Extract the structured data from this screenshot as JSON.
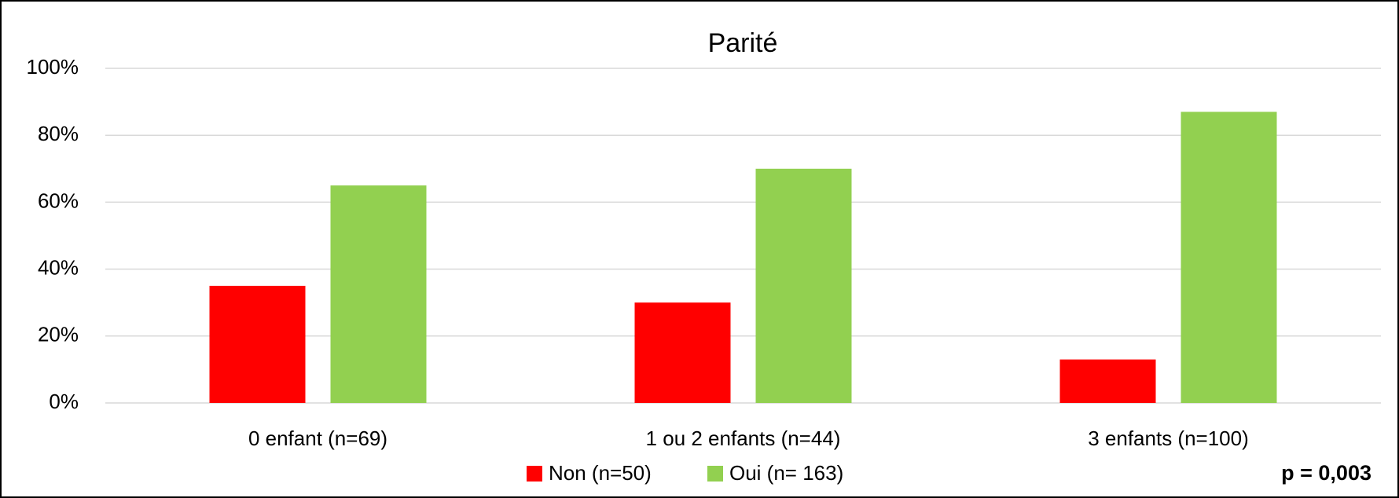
{
  "chart_data": {
    "type": "bar",
    "title": "Parité",
    "categories": [
      "0 enfant (n=69)",
      "1 ou 2 enfants (n=44)",
      "3 enfants (n=100)"
    ],
    "series": [
      {
        "name": "Non (n=50)",
        "color": "#ff0000",
        "values": [
          35,
          30,
          13
        ]
      },
      {
        "name": "Oui (n= 163)",
        "color": "#92d050",
        "values": [
          65,
          70,
          87
        ]
      }
    ],
    "ylim": [
      0,
      100
    ],
    "yticks": [
      {
        "value": 0,
        "label": "0%"
      },
      {
        "value": 20,
        "label": "20%"
      },
      {
        "value": 40,
        "label": "40%"
      },
      {
        "value": 60,
        "label": "60%"
      },
      {
        "value": 80,
        "label": "80%"
      },
      {
        "value": 100,
        "label": "100%"
      }
    ],
    "grid": true,
    "legend": "bottom",
    "annotation": "p = 0,003"
  }
}
